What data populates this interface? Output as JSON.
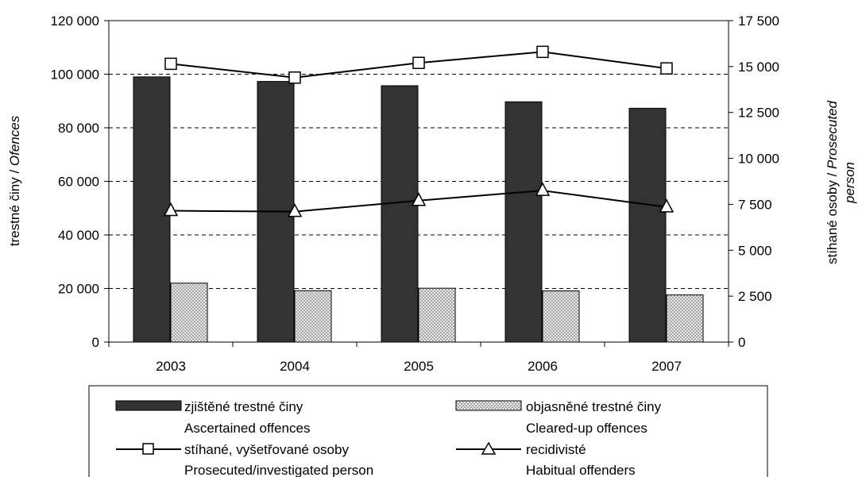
{
  "chart_data": {
    "type": "bar",
    "categories": [
      "2003",
      "2004",
      "2005",
      "2006",
      "2007"
    ],
    "series": [
      {
        "name": "zjištěné trestné činy",
        "name_en": "Ascertained offences",
        "kind": "bar",
        "axis": "left",
        "color": "#333333",
        "values": [
          99000,
          97300,
          95700,
          89700,
          87300
        ]
      },
      {
        "name": "objasněné trestné činy",
        "name_en": "Cleared-up offences",
        "kind": "bar-hatched",
        "axis": "left",
        "color": "#c8c8c8",
        "values": [
          22000,
          19200,
          20100,
          19100,
          17600
        ]
      },
      {
        "name": "stíhané, vyšetřované osoby",
        "name_en": "Prosecuted/investigated person",
        "kind": "line",
        "marker": "square",
        "axis": "right",
        "values": [
          15150,
          14400,
          15200,
          15800,
          14900
        ]
      },
      {
        "name": "recidivisté",
        "name_en": "Habitual offenders",
        "kind": "line",
        "marker": "triangle",
        "axis": "right",
        "values": [
          7150,
          7100,
          7700,
          8250,
          7350
        ]
      }
    ],
    "y_left": {
      "label": "trestné činy /",
      "label_italic": "Ofences",
      "ylim": [
        0,
        120000
      ],
      "ticks": [
        0,
        20000,
        40000,
        60000,
        80000,
        100000,
        120000
      ],
      "tick_labels": [
        "0",
        "20 000",
        "40 000",
        "60 000",
        "80 000",
        "100 000",
        "120 000"
      ]
    },
    "y_right": {
      "label": "stíhané osoby /",
      "label_italic": "Prosecuted",
      "label_italic_2": "person",
      "ylim": [
        0,
        17500
      ],
      "ticks": [
        0,
        2500,
        5000,
        7500,
        10000,
        12500,
        15000,
        17500
      ],
      "tick_labels": [
        "0",
        "2 500",
        "5 000",
        "7 500",
        "10 000",
        "12 500",
        "15 000",
        "17 500"
      ]
    },
    "grid": "dashed horizontal at left-axis ticks",
    "legend_position": "bottom"
  }
}
